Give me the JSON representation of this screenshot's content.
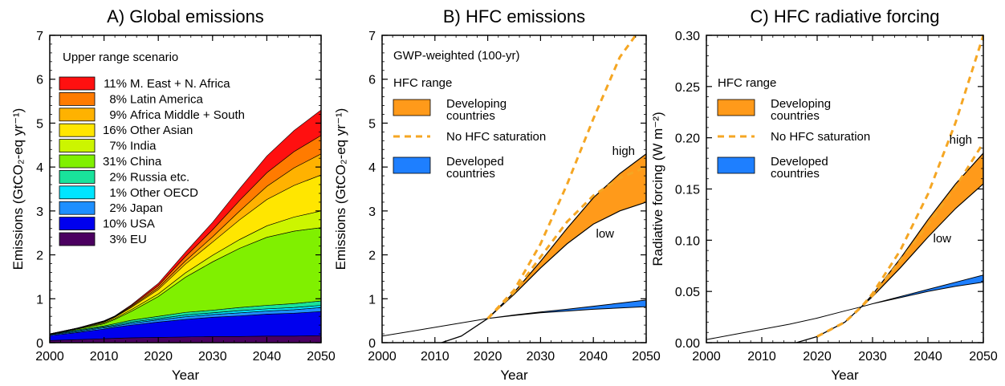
{
  "chart_data": [
    {
      "type": "area",
      "panel_title": "A) Global emissions",
      "xlabel": "Year",
      "ylabel": "Emissions (GtCO₂-eq yr⁻¹)",
      "xlim": [
        2000,
        2050
      ],
      "ylim": [
        0,
        7
      ],
      "xticks": [
        "2000",
        "2010",
        "2020",
        "2030",
        "2040",
        "2050"
      ],
      "yticks": [
        "0",
        "1",
        "2",
        "3",
        "4",
        "5",
        "6",
        "7"
      ],
      "scenario": "Upper range scenario",
      "x": [
        2000,
        2005,
        2010,
        2012,
        2015,
        2020,
        2025,
        2030,
        2035,
        2040,
        2045,
        2050
      ],
      "series_order_note_free": true,
      "series": [
        {
          "name": "3% EU",
          "color": "#4b0060",
          "values": [
            0.05,
            0.07,
            0.09,
            0.1,
            0.11,
            0.12,
            0.13,
            0.14,
            0.14,
            0.15,
            0.15,
            0.16
          ]
        },
        {
          "name": "10% USA",
          "color": "#0000ee",
          "values": [
            0.11,
            0.16,
            0.22,
            0.25,
            0.29,
            0.35,
            0.4,
            0.44,
            0.47,
            0.5,
            0.52,
            0.55
          ]
        },
        {
          "name": "2% Japan",
          "color": "#1e8fff",
          "values": [
            0.02,
            0.02,
            0.03,
            0.03,
            0.04,
            0.05,
            0.06,
            0.06,
            0.07,
            0.07,
            0.08,
            0.09
          ]
        },
        {
          "name": "1% Other OECD",
          "color": "#00e5ff",
          "values": [
            0.01,
            0.02,
            0.02,
            0.02,
            0.03,
            0.03,
            0.04,
            0.04,
            0.05,
            0.05,
            0.05,
            0.05
          ]
        },
        {
          "name": "2% Russia etc.",
          "color": "#19e39b",
          "values": [
            0.01,
            0.02,
            0.02,
            0.03,
            0.04,
            0.05,
            0.06,
            0.06,
            0.07,
            0.08,
            0.09,
            0.1
          ]
        },
        {
          "name": "31% China",
          "color": "#80f000",
          "values": [
            0.0,
            0.02,
            0.05,
            0.1,
            0.2,
            0.45,
            0.8,
            1.1,
            1.35,
            1.55,
            1.65,
            1.67
          ]
        },
        {
          "name": "7% India",
          "color": "#ccf500",
          "values": [
            0.0,
            0.01,
            0.02,
            0.02,
            0.04,
            0.06,
            0.1,
            0.15,
            0.2,
            0.26,
            0.32,
            0.38
          ]
        },
        {
          "name": "16% Other Asian",
          "color": "#ffe600",
          "values": [
            0.0,
            0.01,
            0.02,
            0.03,
            0.05,
            0.1,
            0.2,
            0.3,
            0.45,
            0.6,
            0.72,
            0.82
          ]
        },
        {
          "name": "9% Africa Middle + South",
          "color": "#ffb200",
          "values": [
            0.0,
            0.0,
            0.01,
            0.01,
            0.02,
            0.04,
            0.07,
            0.12,
            0.2,
            0.3,
            0.4,
            0.48
          ]
        },
        {
          "name": "8% Latin America",
          "color": "#ff7b00",
          "values": [
            0.0,
            0.0,
            0.01,
            0.01,
            0.02,
            0.05,
            0.1,
            0.16,
            0.24,
            0.31,
            0.37,
            0.42
          ]
        },
        {
          "name": "11% M. East + N. Africa",
          "color": "#ff1010",
          "values": [
            0.0,
            0.0,
            0.01,
            0.01,
            0.02,
            0.05,
            0.1,
            0.17,
            0.27,
            0.38,
            0.48,
            0.58
          ]
        }
      ]
    },
    {
      "type": "line",
      "panel_title": "B) HFC emissions",
      "subtitle": "GWP-weighted (100-yr)",
      "xlabel": "Year",
      "ylabel": "Emissions (GtCO₂-eq yr⁻¹)",
      "xlim": [
        2000,
        2050
      ],
      "ylim": [
        0,
        7
      ],
      "xticks": [
        "2000",
        "2010",
        "2020",
        "2030",
        "2040",
        "2050"
      ],
      "yticks": [
        "0",
        "1",
        "2",
        "3",
        "4",
        "5",
        "6",
        "7"
      ],
      "legend_title": "HFC range",
      "legend": [
        {
          "label": "Developing\ncountries",
          "kind": "band",
          "color": "#ff9a1a"
        },
        {
          "label": "No HFC saturation",
          "kind": "dash",
          "color": "#f5a623"
        },
        {
          "label": "Developed\ncountries",
          "kind": "band",
          "color": "#1e7fff"
        }
      ],
      "annotations": [
        "high",
        "low"
      ],
      "x": [
        2000,
        2005,
        2010,
        2015,
        2020,
        2025,
        2030,
        2035,
        2040,
        2045,
        2050
      ],
      "developed_low": [
        0.15,
        0.25,
        0.35,
        0.45,
        0.55,
        0.62,
        0.68,
        0.72,
        0.76,
        0.79,
        0.82
      ],
      "developed_high": [
        0.15,
        0.25,
        0.35,
        0.45,
        0.55,
        0.63,
        0.7,
        0.76,
        0.83,
        0.9,
        0.97
      ],
      "total_early": [
        -0.2,
        -0.15,
        -0.05,
        0.15,
        0.55
      ],
      "developing_low": [
        null,
        null,
        null,
        null,
        0.55,
        1.1,
        1.7,
        2.25,
        2.7,
        3.0,
        3.2
      ],
      "developing_high": [
        null,
        null,
        null,
        null,
        0.55,
        1.15,
        1.85,
        2.6,
        3.3,
        3.85,
        4.3
      ],
      "nosat_1": {
        "x": [
          2020,
          2025,
          2030,
          2035,
          2040,
          2045,
          2048
        ],
        "y": [
          0.55,
          1.2,
          2.25,
          3.6,
          5.1,
          6.5,
          7.0
        ]
      },
      "nosat_2": {
        "x": [
          2020,
          2025,
          2030,
          2035,
          2040,
          2045,
          2050
        ],
        "y": [
          0.55,
          1.15,
          1.95,
          2.75,
          3.35,
          3.75,
          4.0
        ]
      }
    },
    {
      "type": "line",
      "panel_title": "C) HFC radiative forcing",
      "xlabel": "Year",
      "ylabel": "Radiative forcing (W m⁻²)",
      "xlim": [
        2000,
        2050
      ],
      "ylim": [
        0,
        0.3
      ],
      "xticks": [
        "2000",
        "2010",
        "2020",
        "2030",
        "2040",
        "2050"
      ],
      "yticks": [
        "0.00",
        "0.05",
        "0.10",
        "0.15",
        "0.20",
        "0.25",
        "0.30"
      ],
      "legend_title": "HFC range",
      "legend": [
        {
          "label": "Developing\ncountries",
          "kind": "band",
          "color": "#ff9a1a"
        },
        {
          "label": "No HFC saturation",
          "kind": "dash",
          "color": "#f5a623"
        },
        {
          "label": "Developed\ncountries",
          "kind": "band",
          "color": "#1e7fff"
        }
      ],
      "annotations": [
        "high",
        "low"
      ],
      "x": [
        2000,
        2005,
        2010,
        2015,
        2020,
        2025,
        2028,
        2030,
        2035,
        2040,
        2045,
        2050
      ],
      "developed_low": [
        0.003,
        0.008,
        0.013,
        0.018,
        0.024,
        0.031,
        0.035,
        0.038,
        0.044,
        0.05,
        0.055,
        0.059
      ],
      "developed_high": [
        0.003,
        0.008,
        0.013,
        0.018,
        0.024,
        0.031,
        0.035,
        0.038,
        0.045,
        0.052,
        0.059,
        0.066
      ],
      "total_early": [
        -0.005,
        -0.005,
        -0.004,
        -0.002,
        0.006,
        0.02,
        0.035
      ],
      "developing_low": [
        null,
        null,
        null,
        null,
        null,
        null,
        0.035,
        0.045,
        0.073,
        0.103,
        0.131,
        0.155
      ],
      "developing_high": [
        null,
        null,
        null,
        null,
        null,
        null,
        0.035,
        0.047,
        0.082,
        0.12,
        0.155,
        0.185
      ],
      "nosat_1": {
        "x": [
          2020,
          2025,
          2028,
          2030,
          2035,
          2040,
          2045,
          2050
        ],
        "y": [
          0.006,
          0.02,
          0.035,
          0.048,
          0.09,
          0.145,
          0.215,
          0.3
        ]
      },
      "nosat_2": {
        "x": [
          2020,
          2025,
          2028,
          2030,
          2035,
          2040,
          2045,
          2050
        ],
        "y": [
          0.006,
          0.02,
          0.035,
          0.046,
          0.08,
          0.115,
          0.152,
          0.195
        ]
      }
    }
  ]
}
